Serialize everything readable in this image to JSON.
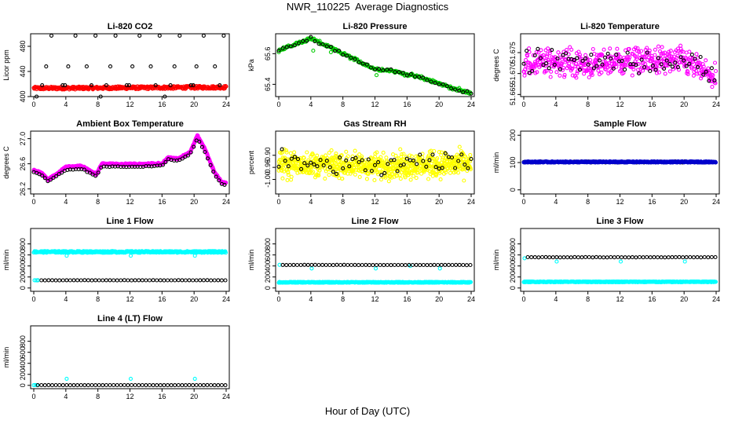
{
  "title": "NWR_110225  Average Diagnostics",
  "xlabel": "Hour of Day (UTC)",
  "chart_data": [
    {
      "id": "co2",
      "type": "scatter",
      "title": "Li-820 CO2",
      "ylabel": "Licor ppm",
      "xlim": [
        0,
        24
      ],
      "ylim": [
        400,
        500
      ],
      "xticks": [
        "0",
        "4",
        "8",
        "12",
        "16",
        "20",
        "24"
      ],
      "yticks": [
        {
          "v": 400,
          "t": "400"
        },
        {
          "v": 440,
          "t": "440"
        },
        {
          "v": 480,
          "t": "480"
        }
      ],
      "series": [
        {
          "color": "#ff0000",
          "style": "band",
          "x_start": 0,
          "x_end": 24,
          "y_low": 411,
          "y_high": 415.5,
          "y_drift": 1.5,
          "density": 0.06
        },
        {
          "color": "#000000",
          "style": "pattern",
          "x_pattern": [
            0.35,
            1.05,
            1.55,
            2.2,
            3.6,
            3.9,
            4.3,
            5.2,
            6.6,
            7.2,
            7.7
          ],
          "y_pattern": [
            400,
            418,
            448,
            497,
            418,
            418,
            448,
            497,
            448,
            418,
            497
          ],
          "x_period": 8,
          "repeats": 3
        }
      ]
    },
    {
      "id": "pressure",
      "type": "scatter",
      "title": "Li-820 Pressure",
      "ylabel": "kPa",
      "xlim": [
        0,
        24
      ],
      "ylim": [
        65.32,
        65.73
      ],
      "xticks": [
        "0",
        "4",
        "8",
        "12",
        "16",
        "20",
        "24"
      ],
      "yticks": [
        {
          "v": 65.4,
          "t": "65.4"
        },
        {
          "v": 65.6,
          "t": "65.6"
        }
      ],
      "series": [
        {
          "color": "#00cc00",
          "style": "trend",
          "knots_x": [
            0,
            2,
            4,
            8,
            12,
            14,
            18,
            22,
            24
          ],
          "knots_y": [
            65.62,
            65.66,
            65.7,
            65.6,
            65.5,
            65.49,
            65.44,
            65.37,
            65.34
          ],
          "x_start": 0,
          "x_end": 24,
          "noise": 0.015,
          "density": 0.1,
          "outliers": [
            {
              "x": 4.3,
              "y": 65.62
            },
            {
              "x": 6.5,
              "y": 65.61
            },
            {
              "x": 12.2,
              "y": 65.46
            }
          ]
        },
        {
          "color": "#000000",
          "style": "trend",
          "knots_x": [
            0,
            2,
            4,
            8,
            12,
            14,
            18,
            22,
            24
          ],
          "knots_y": [
            65.62,
            65.66,
            65.7,
            65.6,
            65.5,
            65.49,
            65.44,
            65.37,
            65.34
          ],
          "x_start": 0,
          "x_end": 24,
          "noise": 0.012,
          "density": 0.5
        }
      ]
    },
    {
      "id": "li820temp",
      "type": "scatter",
      "title": "Li-820 Temperature",
      "ylabel": "degrees C",
      "xlim": [
        0,
        24
      ],
      "ylim": [
        51.6645,
        51.6795
      ],
      "xticks": [
        "0",
        "4",
        "8",
        "12",
        "16",
        "20",
        "24"
      ],
      "yticks": [
        {
          "v": 51.665,
          "t": "51.665"
        },
        {
          "v": 51.67,
          "t": "51.670"
        },
        {
          "v": 51.675,
          "t": "51.675"
        }
      ],
      "series": [
        {
          "color": "#ff00ff",
          "style": "trend",
          "knots_x": [
            0,
            4,
            8,
            12,
            16,
            20,
            22,
            24
          ],
          "knots_y": [
            51.672,
            51.673,
            51.672,
            51.673,
            51.673,
            51.673,
            51.671,
            51.6685
          ],
          "x_start": 0,
          "x_end": 24,
          "noise": 0.0048,
          "density": 0.05
        },
        {
          "color": "#000000",
          "style": "trend",
          "knots_x": [
            0,
            4,
            8,
            12,
            16,
            20,
            22,
            24
          ],
          "knots_y": [
            51.672,
            51.673,
            51.672,
            51.673,
            51.673,
            51.673,
            51.671,
            51.6685
          ],
          "x_start": 0,
          "x_end": 24,
          "noise": 0.0045,
          "density": 0.35
        }
      ]
    },
    {
      "id": "ambient",
      "type": "scatter",
      "title": "Ambient Box Temperature",
      "ylabel": "degrees C",
      "xlim": [
        0,
        24
      ],
      "ylim": [
        26.12,
        27.12
      ],
      "xticks": [
        "0",
        "4",
        "8",
        "12",
        "16",
        "20",
        "24"
      ],
      "yticks": [
        {
          "v": 26.2,
          "t": "26.2"
        },
        {
          "v": 26.6,
          "t": "26.6"
        },
        {
          "v": 27.0,
          "t": "27.0"
        }
      ],
      "series": [
        {
          "color": "#ff00ff",
          "style": "trend",
          "knots_x": [
            0,
            1,
            1.8,
            3,
            4,
            6,
            7.8,
            8.5,
            12,
            16,
            16.8,
            18,
            19.5,
            20.4,
            21.3,
            22.6,
            23.5,
            24
          ],
          "knots_y": [
            26.5,
            26.45,
            26.35,
            26.45,
            26.55,
            26.56,
            26.43,
            26.6,
            26.59,
            26.6,
            26.7,
            26.68,
            26.78,
            27.05,
            26.85,
            26.45,
            26.3,
            26.3
          ],
          "x_start": 0,
          "x_end": 24,
          "noise": 0.02,
          "density": 0.035
        },
        {
          "color": "#000000",
          "style": "trend",
          "knots_x": [
            0,
            1,
            1.8,
            3,
            4,
            6,
            7.8,
            8.5,
            12,
            16,
            16.8,
            18,
            19.5,
            20.4,
            21.3,
            22.6,
            23.5,
            24
          ],
          "knots_y": [
            26.47,
            26.42,
            26.32,
            26.42,
            26.5,
            26.52,
            26.4,
            26.56,
            26.55,
            26.57,
            26.67,
            26.65,
            26.75,
            27.0,
            26.8,
            26.42,
            26.27,
            26.27
          ],
          "x_start": 0,
          "x_end": 24,
          "noise": 0.01,
          "density": 0.35
        }
      ]
    },
    {
      "id": "rh",
      "type": "scatter",
      "title": "Gas Stream RH",
      "ylabel": "percent",
      "xlim": [
        0,
        24
      ],
      "ylim": [
        -1.06,
        -0.8
      ],
      "xticks": [
        "0",
        "4",
        "8",
        "12",
        "16",
        "20",
        "24"
      ],
      "yticks": [
        {
          "v": -1.0,
          "t": "-1.00"
        },
        {
          "v": -0.95,
          "t": "-0.95"
        },
        {
          "v": -0.9,
          "t": "-0.90"
        }
      ],
      "series": [
        {
          "color": "#ffff00",
          "style": "trend",
          "knots_x": [
            0,
            12,
            24
          ],
          "knots_y": [
            -0.935,
            -0.945,
            -0.935
          ],
          "x_start": 0,
          "x_end": 24,
          "noise": 0.075,
          "density": 0.03
        },
        {
          "color": "#000000",
          "style": "trend",
          "knots_x": [
            0,
            12,
            24
          ],
          "knots_y": [
            -0.935,
            -0.945,
            -0.93
          ],
          "x_start": 0,
          "x_end": 24,
          "noise": 0.07,
          "density": 0.4
        }
      ]
    },
    {
      "id": "sampleflow",
      "type": "scatter",
      "title": "Sample Flow",
      "ylabel": "ml/min",
      "xlim": [
        0,
        24
      ],
      "ylim": [
        -15,
        215
      ],
      "xticks": [
        "0",
        "4",
        "8",
        "12",
        "16",
        "20",
        "24"
      ],
      "yticks": [
        {
          "v": 0,
          "t": "0"
        },
        {
          "v": 100,
          "t": "100"
        },
        {
          "v": 200,
          "t": "200"
        }
      ],
      "series": [
        {
          "color": "#000000",
          "style": "band",
          "x_start": 0,
          "x_end": 24,
          "y_low": 100,
          "y_high": 104,
          "y_drift": 0,
          "density": 0.3
        },
        {
          "color": "#0000cc",
          "style": "band",
          "x_start": 0,
          "x_end": 24,
          "y_low": 100,
          "y_high": 104,
          "y_drift": 0,
          "density": 0.05
        }
      ]
    },
    {
      "id": "line1",
      "type": "scatter",
      "title": "Line 1 Flow",
      "ylabel": "ml/min",
      "xlim": [
        0,
        24
      ],
      "ylim": [
        -60,
        1080
      ],
      "xticks": [
        "0",
        "4",
        "8",
        "12",
        "16",
        "20",
        "24"
      ],
      "yticks": [
        {
          "v": 0,
          "t": "0"
        },
        {
          "v": 200,
          "t": "200"
        },
        {
          "v": 400,
          "t": "400"
        },
        {
          "v": 600,
          "t": "600"
        },
        {
          "v": 800,
          "t": "800"
        }
      ],
      "series": [
        {
          "color": "#00ffff",
          "style": "band",
          "x_start": 0,
          "x_end": 24,
          "y_low": 640,
          "y_high": 670,
          "y_drift": 0,
          "density": 0.05,
          "outliers": [
            {
              "x": 4.1,
              "y": 585
            },
            {
              "x": 12.1,
              "y": 585
            },
            {
              "x": 20.1,
              "y": 585
            }
          ]
        },
        {
          "color": "#000000",
          "style": "band",
          "x_start": 0.5,
          "x_end": 24,
          "y_low": 138,
          "y_high": 142,
          "y_drift": 0,
          "density": 0.45
        },
        {
          "color": "#00ffff",
          "style": "band",
          "x_start": 0.1,
          "x_end": 0.5,
          "y_low": 138,
          "y_high": 142,
          "y_drift": 0,
          "density": 0.2
        }
      ]
    },
    {
      "id": "line2",
      "type": "scatter",
      "title": "Line 2 Flow",
      "ylabel": "ml/min",
      "xlim": [
        0,
        24
      ],
      "ylim": [
        -60,
        1080
      ],
      "xticks": [
        "0",
        "4",
        "8",
        "12",
        "16",
        "20",
        "24"
      ],
      "yticks": [
        {
          "v": 0,
          "t": "0"
        },
        {
          "v": 200,
          "t": "200"
        },
        {
          "v": 400,
          "t": "400"
        },
        {
          "v": 600,
          "t": "600"
        },
        {
          "v": 800,
          "t": "800"
        }
      ],
      "series": [
        {
          "color": "#00ffff",
          "style": "band",
          "x_start": 0,
          "x_end": 24,
          "y_low": 95,
          "y_high": 110,
          "y_drift": 0,
          "density": 0.05,
          "outliers": [
            {
              "x": 0.1,
              "y": 420
            },
            {
              "x": 4.1,
              "y": 355
            },
            {
              "x": 12.1,
              "y": 355
            },
            {
              "x": 16.4,
              "y": 400
            },
            {
              "x": 20.1,
              "y": 355
            }
          ]
        },
        {
          "color": "#000000",
          "style": "band",
          "x_start": 0.5,
          "x_end": 24,
          "y_low": 415,
          "y_high": 420,
          "y_drift": 0,
          "density": 0.45
        }
      ]
    },
    {
      "id": "line3",
      "type": "scatter",
      "title": "Line 3 Flow",
      "ylabel": "ml/min",
      "xlim": [
        0,
        24
      ],
      "ylim": [
        -60,
        1080
      ],
      "xticks": [
        "0",
        "4",
        "8",
        "12",
        "16",
        "20",
        "24"
      ],
      "yticks": [
        {
          "v": 0,
          "t": "0"
        },
        {
          "v": 200,
          "t": "200"
        },
        {
          "v": 400,
          "t": "400"
        },
        {
          "v": 600,
          "t": "600"
        },
        {
          "v": 800,
          "t": "800"
        }
      ],
      "series": [
        {
          "color": "#00ffff",
          "style": "band",
          "x_start": 0,
          "x_end": 24,
          "y_low": 105,
          "y_high": 118,
          "y_drift": 0,
          "density": 0.05,
          "outliers": [
            {
              "x": 0.1,
              "y": 540
            },
            {
              "x": 4.1,
              "y": 480
            },
            {
              "x": 12.1,
              "y": 480
            },
            {
              "x": 20.1,
              "y": 480
            }
          ]
        },
        {
          "color": "#000000",
          "style": "band",
          "x_start": 0.5,
          "x_end": 24,
          "y_low": 555,
          "y_high": 562,
          "y_drift": 0,
          "density": 0.45
        }
      ]
    },
    {
      "id": "line4",
      "type": "scatter",
      "title": "Line 4 (LT) Flow",
      "ylabel": "ml/min",
      "xlim": [
        0,
        24
      ],
      "ylim": [
        -60,
        1080
      ],
      "xticks": [
        "0",
        "4",
        "8",
        "12",
        "16",
        "20",
        "24"
      ],
      "yticks": [
        {
          "v": 0,
          "t": "0"
        },
        {
          "v": 200,
          "t": "200"
        },
        {
          "v": 400,
          "t": "400"
        },
        {
          "v": 600,
          "t": "600"
        },
        {
          "v": 800,
          "t": "800"
        }
      ],
      "series": [
        {
          "color": "#00ffff",
          "style": "band",
          "x_start": 0,
          "x_end": 0.5,
          "y_low": 2,
          "y_high": 5,
          "y_drift": 0,
          "density": 0.2,
          "outliers": [
            {
              "x": 4.1,
              "y": 120
            },
            {
              "x": 12.1,
              "y": 120
            },
            {
              "x": 20.1,
              "y": 120
            }
          ]
        },
        {
          "color": "#000000",
          "style": "band",
          "x_start": 0.5,
          "x_end": 24,
          "y_low": 2,
          "y_high": 5,
          "y_drift": 0,
          "density": 0.45
        }
      ]
    }
  ]
}
